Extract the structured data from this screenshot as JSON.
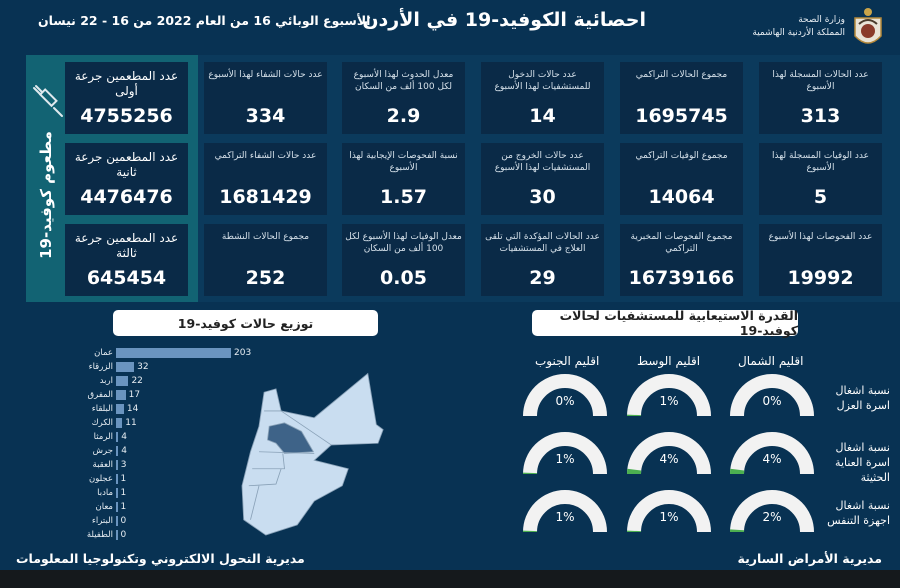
{
  "header": {
    "title": "احصائية الكوفيد-19 في الأردن",
    "subtitle": "الأسبوع الوبائي  16 من العام 2022 من  16 - 22 نيسان",
    "ministry_line1": "وزارة الصحة",
    "ministry_line2": "المملكة الأردنية الهاشمية",
    "emblem_icon": "jordan-emblem-icon"
  },
  "stats": {
    "col1": [
      {
        "label": "عدد الحالات المسجلة لهذا الأسبوع",
        "value": "313"
      },
      {
        "label": "عدد الوفيات المسجلة لهذا الأسبوع",
        "value": "5"
      },
      {
        "label": "عدد الفحوصات لهذا الأسبوع",
        "value": "19992"
      }
    ],
    "col2": [
      {
        "label": "مجموع الحالات التراكمي",
        "value": "1695745"
      },
      {
        "label": "مجموع الوفيات التراكمي",
        "value": "14064"
      },
      {
        "label": "مجموع الفحوصات المخبرية التراكمي",
        "value": "16739166"
      }
    ],
    "col3": [
      {
        "label": "عدد حالات الدخول للمستشفيات لهذا الأسبوع",
        "value": "14"
      },
      {
        "label": "عدد حالات الخروج من المستشفيات لهذا الأسبوع",
        "value": "30"
      },
      {
        "label": "عدد الحالات المؤكدة التي تلقى العلاج في المستشفيات",
        "value": "29"
      }
    ],
    "col4": [
      {
        "label": "معدل الحدوث لهذا الأسبوع لكل 100 ألف من السكان",
        "value": "2.9"
      },
      {
        "label": "نسبة الفحوصات الإيجابية لهذا الأسبوع",
        "value": "1.57"
      },
      {
        "label": "معدل الوفيات لهذا الأسبوع لكل 100 ألف من السكان",
        "value": "0.05"
      }
    ],
    "col5": [
      {
        "label": "عدد حالات الشفاء لهذا الأسبوع",
        "value": "334"
      },
      {
        "label": "عدد حالات الشفاء التراكمي",
        "value": "1681429"
      },
      {
        "label": "مجموع الحالات النشطة",
        "value": "252"
      }
    ]
  },
  "vaccine": {
    "panel_label": "مطعوم كوفيد-19",
    "icon": "syringe-icon",
    "cards": [
      {
        "label": "عدد المطعمين جرعة أولى",
        "value": "4755256"
      },
      {
        "label": "عدد المطعمين جرعة ثانية",
        "value": "4476476"
      },
      {
        "label": "عدد المطعمين جرعة ثالثة",
        "value": "645454"
      }
    ]
  },
  "distribution": {
    "title": "توزيع حالات كوفيد-19"
  },
  "capacity": {
    "title": "القدرة الاستيعابية للمستشفيات لحالات كوفيد-19",
    "regions": [
      "اقليم الشمال",
      "اقليم الوسط",
      "اقليم الجنوب"
    ],
    "rows": [
      {
        "label": "نسبة اشغال اسرة العزل",
        "values": [
          "0%",
          "1%",
          "0%"
        ]
      },
      {
        "label": "نسبة اشغال اسرة العناية الحثيثة",
        "values": [
          "4%",
          "4%",
          "1%"
        ]
      },
      {
        "label": "نسبة اشغال اجهزة التنفس",
        "values": [
          "2%",
          "1%",
          "1%"
        ]
      }
    ],
    "gauge_fill_color": "#4caf50",
    "gauge_track_color": "#f2f2f2"
  },
  "chart_data": {
    "type": "bar",
    "title": "توزيع حالات كوفيد-19",
    "orientation": "horizontal",
    "categories": [
      "عمان",
      "الزرقاء",
      "اربد",
      "المفرق",
      "البلقاء",
      "الكرك",
      "الرمثا",
      "جرش",
      "العقبة",
      "عجلون",
      "مادبا",
      "معان",
      "البتراء",
      "الطفيلة"
    ],
    "values": [
      203,
      32,
      22,
      17,
      14,
      11,
      4,
      4,
      3,
      1,
      1,
      1,
      0,
      0
    ],
    "bar_color": "#6a94bf",
    "xlabel": "",
    "ylabel": ""
  },
  "footer": {
    "left": "مديرية التحول الالكتروني وتكنولوجيا المعلومات",
    "right": "مديرية الأمراض السارية"
  }
}
